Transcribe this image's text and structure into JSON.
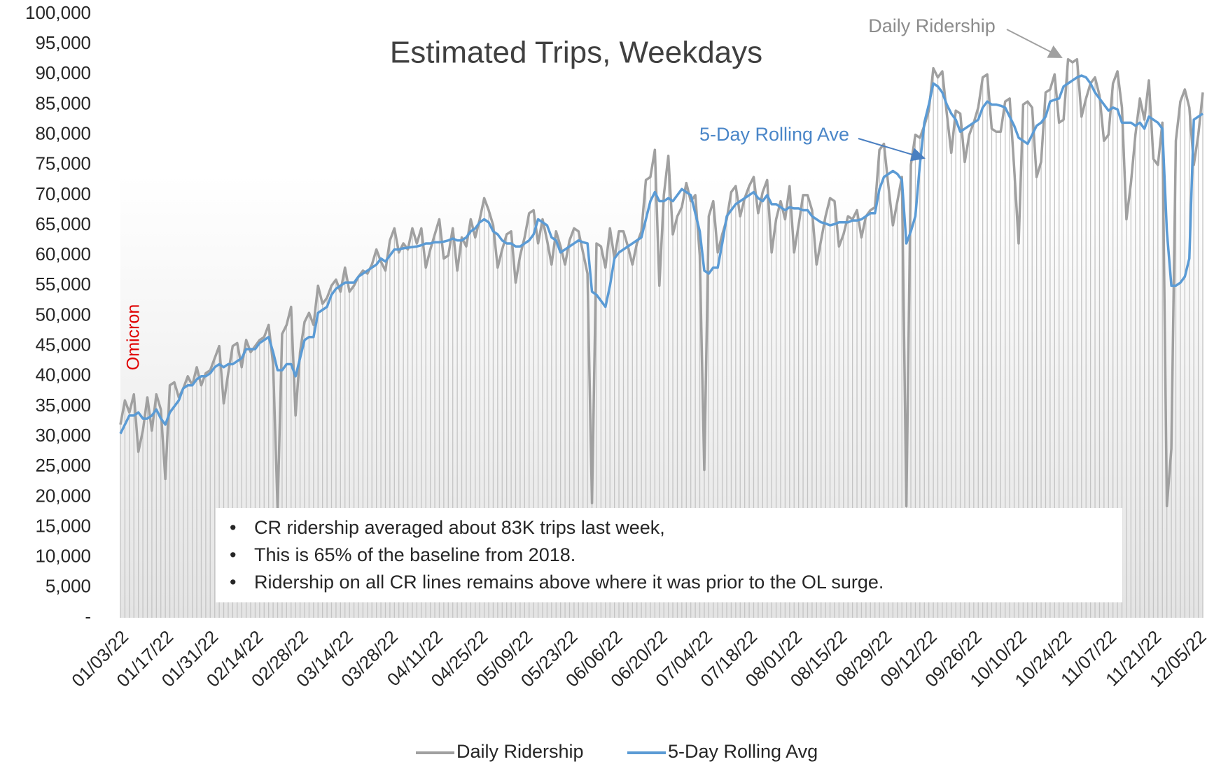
{
  "chart_data": {
    "type": "line",
    "title": "Estimated Trips, Weekdays",
    "annotations": [
      "Daily Ridership",
      "5-Day Rolling Ave",
      "Omicron"
    ],
    "notes": [
      "CR ridership averaged about 83K trips last week,",
      "This is 65% of the baseline from 2018.",
      "Ridership on all CR lines remains above where it was prior to the OL surge."
    ],
    "grid": false,
    "legend": "bottom",
    "ylim": [
      0,
      100000
    ],
    "yticks": [
      {
        "value": 0,
        "label": "-"
      },
      {
        "value": 5000,
        "label": "5,000"
      },
      {
        "value": 10000,
        "label": "10,000"
      },
      {
        "value": 15000,
        "label": "15,000"
      },
      {
        "value": 20000,
        "label": "20,000"
      },
      {
        "value": 25000,
        "label": "25,000"
      },
      {
        "value": 30000,
        "label": "30,000"
      },
      {
        "value": 35000,
        "label": "35,000"
      },
      {
        "value": 40000,
        "label": "40,000"
      },
      {
        "value": 45000,
        "label": "45,000"
      },
      {
        "value": 50000,
        "label": "50,000"
      },
      {
        "value": 55000,
        "label": "55,000"
      },
      {
        "value": 60000,
        "label": "60,000"
      },
      {
        "value": 65000,
        "label": "65,000"
      },
      {
        "value": 70000,
        "label": "70,000"
      },
      {
        "value": 75000,
        "label": "75,000"
      },
      {
        "value": 80000,
        "label": "80,000"
      },
      {
        "value": 85000,
        "label": "85,000"
      },
      {
        "value": 90000,
        "label": "90,000"
      },
      {
        "value": 95000,
        "label": "95,000"
      },
      {
        "value": 100000,
        "label": "100,000"
      }
    ],
    "categories": [
      "01/03/22",
      null,
      null,
      null,
      null,
      null,
      null,
      null,
      null,
      null,
      "01/17/22",
      null,
      null,
      null,
      null,
      null,
      null,
      null,
      null,
      null,
      "01/31/22",
      null,
      null,
      null,
      null,
      null,
      null,
      null,
      null,
      null,
      "02/14/22",
      null,
      null,
      null,
      null,
      null,
      null,
      null,
      null,
      null,
      "02/28/22",
      null,
      null,
      null,
      null,
      null,
      null,
      null,
      null,
      null,
      "03/14/22",
      null,
      null,
      null,
      null,
      null,
      null,
      null,
      null,
      null,
      "03/28/22",
      null,
      null,
      null,
      null,
      null,
      null,
      null,
      null,
      null,
      "04/11/22",
      null,
      null,
      null,
      null,
      null,
      null,
      null,
      null,
      null,
      "04/25/22",
      null,
      null,
      null,
      null,
      null,
      null,
      null,
      null,
      null,
      "05/09/22",
      null,
      null,
      null,
      null,
      null,
      null,
      null,
      null,
      null,
      "05/23/22",
      null,
      null,
      null,
      null,
      null,
      null,
      null,
      null,
      null,
      "06/06/22",
      null,
      null,
      null,
      null,
      null,
      null,
      null,
      null,
      null,
      "06/20/22",
      null,
      null,
      null,
      null,
      null,
      null,
      null,
      null,
      null,
      "07/04/22",
      null,
      null,
      null,
      null,
      null,
      null,
      null,
      null,
      null,
      "07/18/22",
      null,
      null,
      null,
      null,
      null,
      null,
      null,
      null,
      null,
      "08/01/22",
      null,
      null,
      null,
      null,
      null,
      null,
      null,
      null,
      null,
      "08/15/22",
      null,
      null,
      null,
      null,
      null,
      null,
      null,
      null,
      null,
      "08/29/22",
      null,
      null,
      null,
      null,
      null,
      null,
      null,
      null,
      null,
      "09/12/22",
      null,
      null,
      null,
      null,
      null,
      null,
      null,
      null,
      null,
      "09/26/22",
      null,
      null,
      null,
      null,
      null,
      null,
      null,
      null,
      null,
      "10/10/22",
      null,
      null,
      null,
      null,
      null,
      null,
      null,
      null,
      null,
      "10/24/22",
      null,
      null,
      null,
      null,
      null,
      null,
      null,
      null,
      null,
      "11/07/22",
      null,
      null,
      null,
      null,
      null,
      null,
      null,
      null,
      null,
      "11/21/22",
      null,
      null,
      null,
      null,
      null,
      null,
      null,
      null,
      null,
      "12/05/22",
      null
    ],
    "series": [
      {
        "name": "Daily Ridership",
        "color": "#a0a0a0",
        "values": [
          32000,
          36000,
          34000,
          37000,
          27500,
          31000,
          36500,
          31000,
          37000,
          34500,
          23000,
          38500,
          39000,
          36500,
          38000,
          40000,
          38500,
          41500,
          38500,
          40500,
          41000,
          43000,
          45000,
          35500,
          40500,
          45000,
          45500,
          41500,
          46000,
          44000,
          45000,
          46000,
          46500,
          48500,
          42000,
          18000,
          47000,
          48500,
          51500,
          33500,
          44000,
          49000,
          50500,
          48500,
          55000,
          52000,
          53000,
          55000,
          56000,
          54000,
          58000,
          54000,
          55000,
          56500,
          57500,
          57000,
          58500,
          61000,
          59000,
          57500,
          62500,
          64500,
          60500,
          62000,
          61000,
          64500,
          62000,
          64500,
          58000,
          61000,
          63500,
          66000,
          59500,
          60000,
          64500,
          57500,
          63000,
          61500,
          66000,
          63000,
          66000,
          69500,
          67500,
          65000,
          58000,
          61000,
          63500,
          64000,
          55500,
          60000,
          63000,
          67000,
          67500,
          62000,
          66000,
          62500,
          58500,
          64000,
          61500,
          58500,
          62500,
          64500,
          64000,
          60500,
          57000,
          19000,
          62000,
          61500,
          58000,
          64500,
          59500,
          64000,
          64000,
          61500,
          58500,
          62000,
          64000,
          72500,
          73000,
          77500,
          55000,
          70000,
          76500,
          63500,
          66500,
          68000,
          72000,
          69000,
          70000,
          60000,
          24500,
          66500,
          69000,
          60500,
          63500,
          66000,
          70500,
          71500,
          66500,
          69500,
          71500,
          73000,
          67000,
          70500,
          72500,
          60500,
          66000,
          69000,
          66000,
          71500,
          60500,
          65000,
          70000,
          70000,
          67500,
          58500,
          62500,
          66500,
          69500,
          69000,
          61500,
          63500,
          66500,
          66000,
          67500,
          63000,
          66500,
          67500,
          68000,
          77500,
          78500,
          71500,
          65000,
          69000,
          73000,
          18500,
          75000,
          80000,
          79500,
          81500,
          84000,
          91000,
          89500,
          90500,
          83500,
          77000,
          84000,
          83500,
          75500,
          80000,
          82000,
          84500,
          89500,
          90000,
          81000,
          80500,
          80500,
          85500,
          86000,
          74500,
          62000,
          85000,
          85500,
          84500,
          73000,
          75500,
          87000,
          87500,
          90000,
          82000,
          82500,
          92500,
          92000,
          92500,
          83000,
          86000,
          88500,
          89500,
          86500,
          79000,
          80000,
          88500,
          90500,
          84500,
          66000,
          72000,
          80000,
          86000,
          82500,
          89000,
          76000,
          75000,
          82000,
          18500,
          28000,
          79000,
          85500,
          87500,
          84500,
          75000,
          80000,
          87000
        ]
      },
      {
        "name": "5-Day Rolling Avg",
        "color": "#5b9bd5",
        "values": [
          30500,
          32000,
          33500,
          33500,
          34000,
          33000,
          33000,
          33500,
          34500,
          33000,
          32000,
          34000,
          35000,
          36000,
          38000,
          38500,
          38500,
          39500,
          40000,
          40000,
          40500,
          41500,
          42000,
          41500,
          42000,
          42000,
          42500,
          43000,
          44500,
          44500,
          44500,
          45500,
          46000,
          46500,
          44000,
          41000,
          41000,
          42000,
          42000,
          40000,
          43000,
          46000,
          46500,
          46500,
          50500,
          51000,
          51500,
          53500,
          54500,
          55000,
          55500,
          55500,
          55500,
          56500,
          57000,
          57500,
          58000,
          58500,
          59500,
          59000,
          60000,
          61000,
          61000,
          61200,
          61300,
          61400,
          61500,
          61700,
          62000,
          62000,
          62200,
          62200,
          62300,
          62500,
          62800,
          62500,
          62500,
          63000,
          64000,
          64500,
          65500,
          66000,
          65500,
          64000,
          63500,
          62500,
          62000,
          62000,
          61500,
          61500,
          62000,
          62500,
          63500,
          66000,
          65500,
          65000,
          63000,
          62500,
          60500,
          61000,
          61500,
          62000,
          62500,
          62200,
          62000,
          54000,
          53500,
          52500,
          51500,
          55000,
          59500,
          60500,
          61000,
          61500,
          62000,
          62500,
          63000,
          66000,
          69000,
          70500,
          69000,
          69000,
          69500,
          69000,
          70000,
          71000,
          70500,
          70000,
          67000,
          64000,
          57500,
          57000,
          58000,
          58000,
          62000,
          66500,
          67500,
          68500,
          69000,
          69500,
          70000,
          70500,
          69500,
          69000,
          70000,
          68500,
          68500,
          68000,
          67500,
          68000,
          67800,
          67800,
          67500,
          67500,
          66500,
          66000,
          65500,
          65300,
          65000,
          65200,
          65500,
          65500,
          65500,
          65800,
          65800,
          66000,
          66500,
          67000,
          67000,
          71000,
          73000,
          73500,
          74000,
          73500,
          72500,
          62000,
          64000,
          66500,
          75000,
          82000,
          85000,
          88500,
          88000,
          87000,
          85000,
          83500,
          82500,
          80500,
          81000,
          81500,
          82000,
          82500,
          84500,
          85500,
          85000,
          85000,
          84800,
          84500,
          83000,
          81500,
          79500,
          79000,
          78500,
          80000,
          81500,
          82000,
          83000,
          85500,
          85800,
          86000,
          88000,
          88500,
          89000,
          89500,
          89800,
          89500,
          88500,
          87000,
          86000,
          85000,
          84000,
          84500,
          84200,
          82000,
          82000,
          82000,
          81500,
          82000,
          81000,
          83000,
          82500,
          82000,
          81000,
          64000,
          55000,
          55000,
          55500,
          56500,
          59500,
          82500,
          83000,
          83500
        ]
      }
    ]
  }
}
